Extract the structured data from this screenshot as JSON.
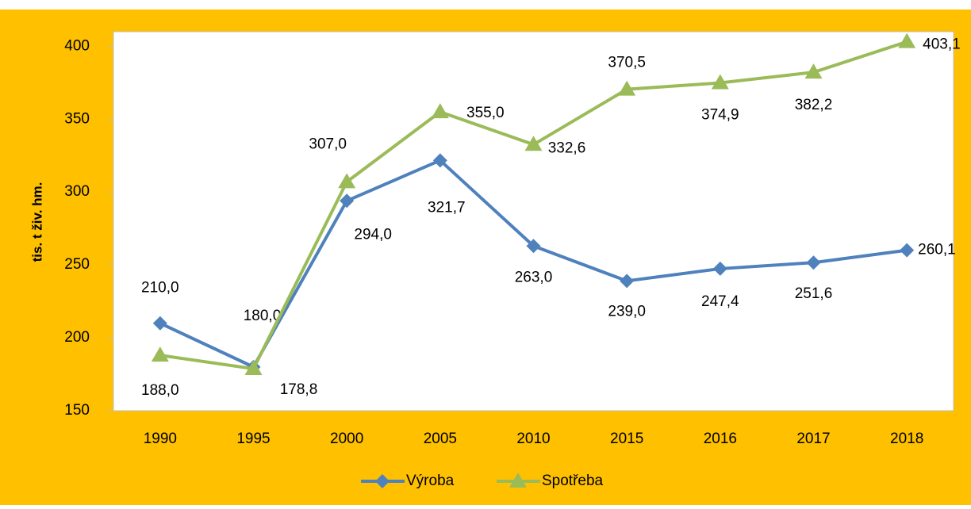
{
  "chart_data": {
    "type": "line",
    "y_label": "tis. t živ. hm.",
    "categories": [
      "1990",
      "1995",
      "2000",
      "2005",
      "2010",
      "2015",
      "2016",
      "2017",
      "2018"
    ],
    "series": [
      {
        "name": "Výroba",
        "color": "#4f81bd",
        "marker": "diamond",
        "values": [
          210.0,
          180.0,
          294.0,
          321.7,
          263.0,
          239.0,
          247.4,
          251.6,
          260.1
        ],
        "value_labels": [
          "210,0",
          "180,0",
          "294,0",
          "321,7",
          "263,0",
          "239,0",
          "247,4",
          "251,6",
          "260,1"
        ]
      },
      {
        "name": "Spotřeba",
        "color": "#9bbb59",
        "marker": "triangle",
        "values": [
          188.0,
          178.8,
          307.0,
          355.0,
          332.6,
          370.5,
          374.9,
          382.2,
          403.1
        ],
        "value_labels": [
          "188,0",
          "178,8",
          "307,0",
          "355,0",
          "332,6",
          "370,5",
          "374,9",
          "382,2",
          "403,1"
        ]
      }
    ],
    "ylim": [
      150,
      410
    ],
    "yticks": [
      150,
      200,
      250,
      300,
      350,
      400
    ],
    "legend": "bottom",
    "background": "#ffc000"
  }
}
